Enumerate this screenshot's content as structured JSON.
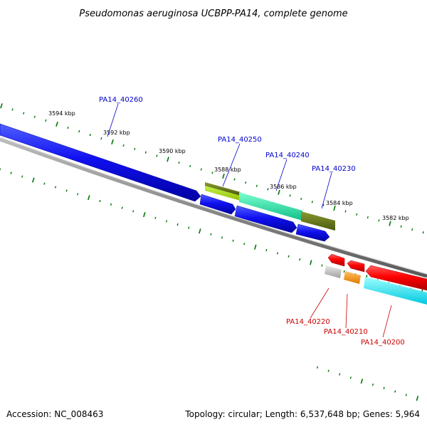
{
  "title": "Pseudomonas aeruginosa UCBPP-PA14, complete genome",
  "footer": {
    "accession": "Accession: NC_008463",
    "summary": "Topology: circular; Length: 6,537,648 bp; Genes: 5,964"
  },
  "kbp_labels": [
    "3594 kbp",
    "3592 kbp",
    "3590 kbp",
    "3588 kbp",
    "3586 kbp",
    "3584 kbp",
    "3582 kbp"
  ],
  "genes_forward": [
    {
      "name": "PA14_40260",
      "color": "#0000ee"
    },
    {
      "name": "PA14_40250",
      "color": "#0000ee"
    },
    {
      "name": "PA14_40240",
      "color": "#0000ee"
    },
    {
      "name": "PA14_40230",
      "color": "#0000ee"
    }
  ],
  "genes_reverse": [
    {
      "name": "PA14_40220",
      "color": "#ee0000"
    },
    {
      "name": "PA14_40210",
      "color": "#ee0000"
    },
    {
      "name": "PA14_40200",
      "color": "#ee0000"
    }
  ],
  "colors": {
    "forward_strand": "#0000ff",
    "reverse_strand": "#ff0000",
    "backbone": "#7a7a7a",
    "ticks": "#007700",
    "cog_green_light": "#a8e020",
    "cog_olive": "#6a7a20",
    "cog_aqua": "#2ee8a8",
    "cog_cyan": "#00f0ff",
    "cog_orange": "#ff9900",
    "cog_grey": "#c0c0c0"
  }
}
